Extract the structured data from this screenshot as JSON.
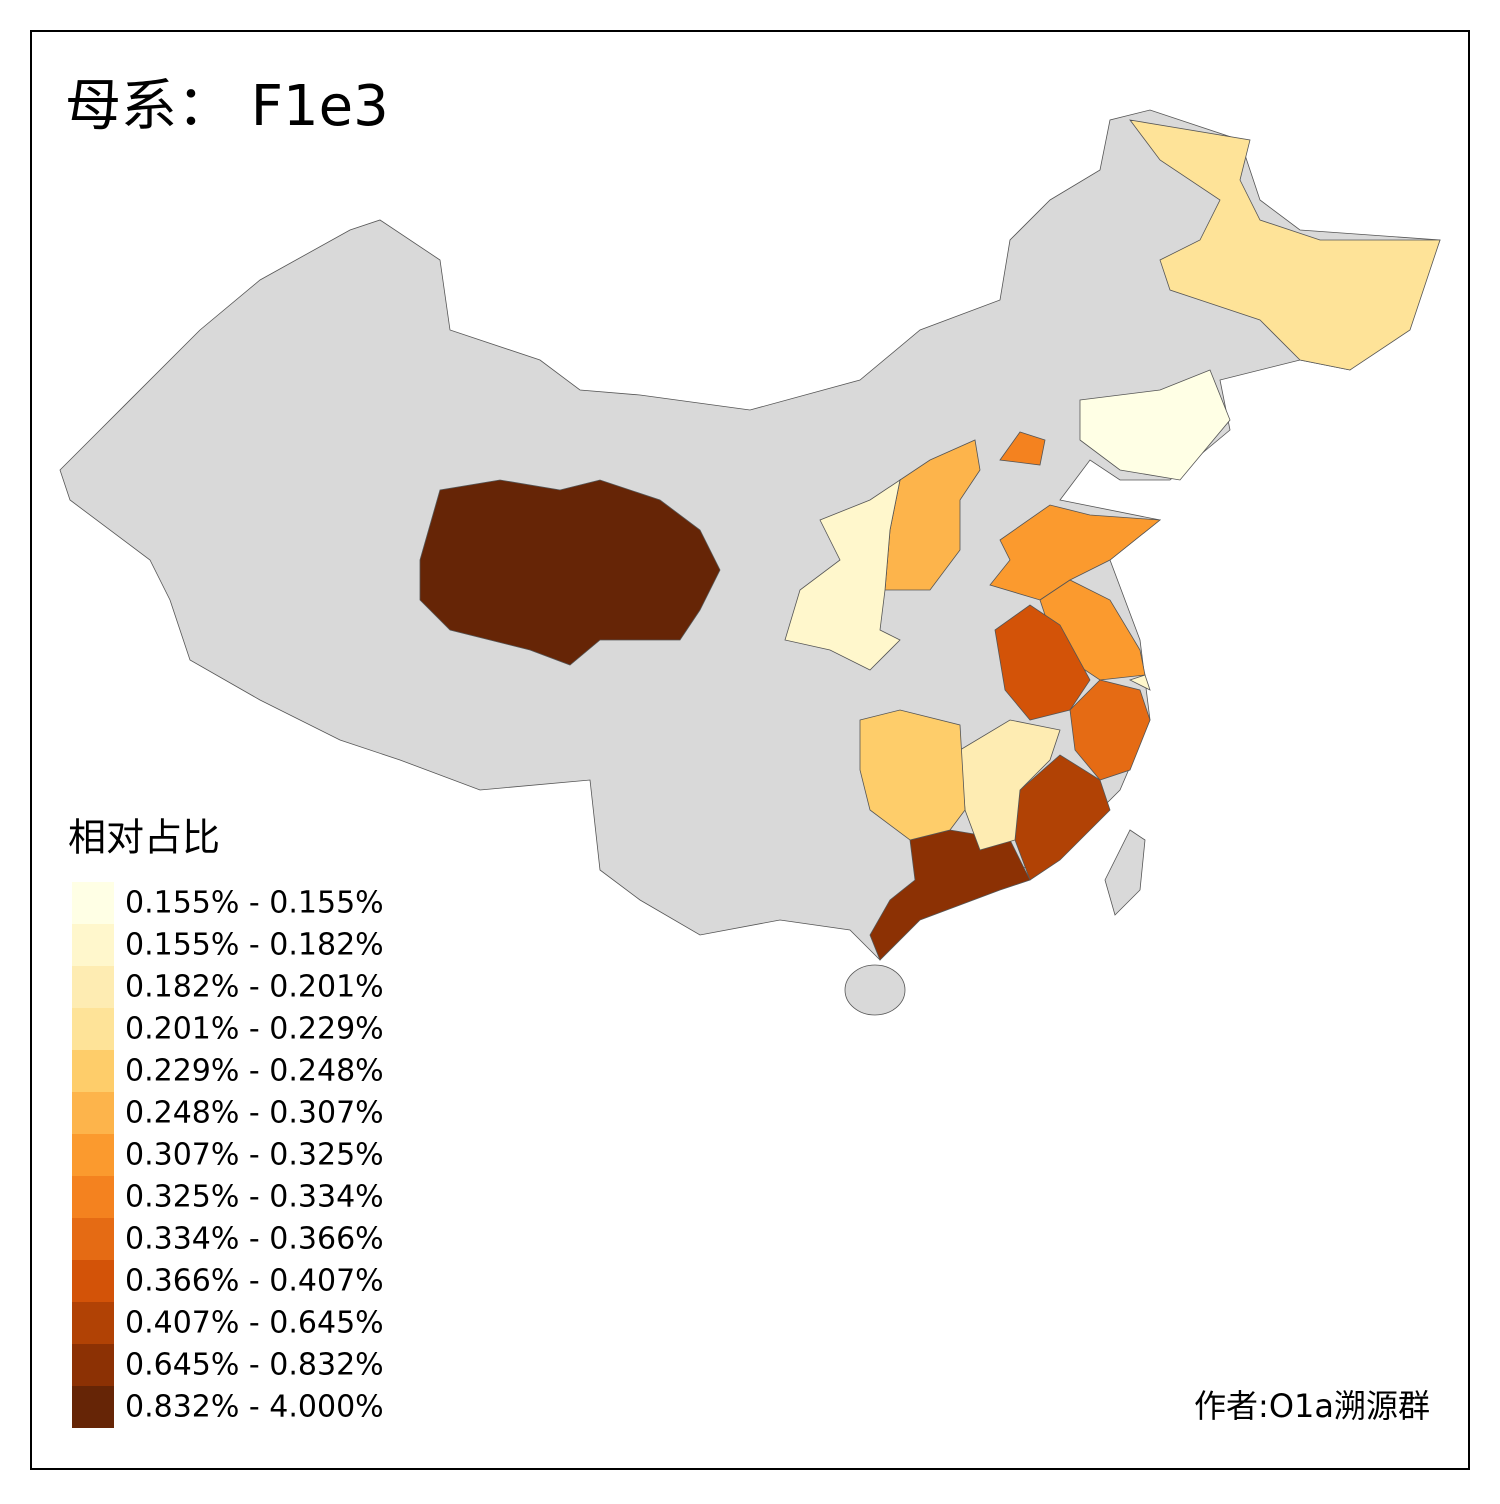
{
  "title": "母系： F1e3",
  "legend": {
    "title": "相对占比",
    "items": [
      {
        "label": "0.155% - 0.155%",
        "color": "#ffffe5"
      },
      {
        "label": "0.155% - 0.182%",
        "color": "#fff7cc"
      },
      {
        "label": "0.182% - 0.201%",
        "color": "#feecb2"
      },
      {
        "label": "0.201% - 0.229%",
        "color": "#fee398"
      },
      {
        "label": "0.229% - 0.248%",
        "color": "#fecd6a"
      },
      {
        "label": "0.248% - 0.307%",
        "color": "#fdb44b"
      },
      {
        "label": "0.307% - 0.325%",
        "color": "#fb9a2e"
      },
      {
        "label": "0.325% - 0.334%",
        "color": "#f4821f"
      },
      {
        "label": "0.334% - 0.366%",
        "color": "#e56b14"
      },
      {
        "label": "0.366% - 0.407%",
        "color": "#d35308"
      },
      {
        "label": "0.407% - 0.645%",
        "color": "#b14205"
      },
      {
        "label": "0.645% - 0.832%",
        "color": "#8c3104"
      },
      {
        "label": "0.832% - 4.000%",
        "color": "#662506"
      }
    ]
  },
  "credit": "作者:O1a溯源群"
}
